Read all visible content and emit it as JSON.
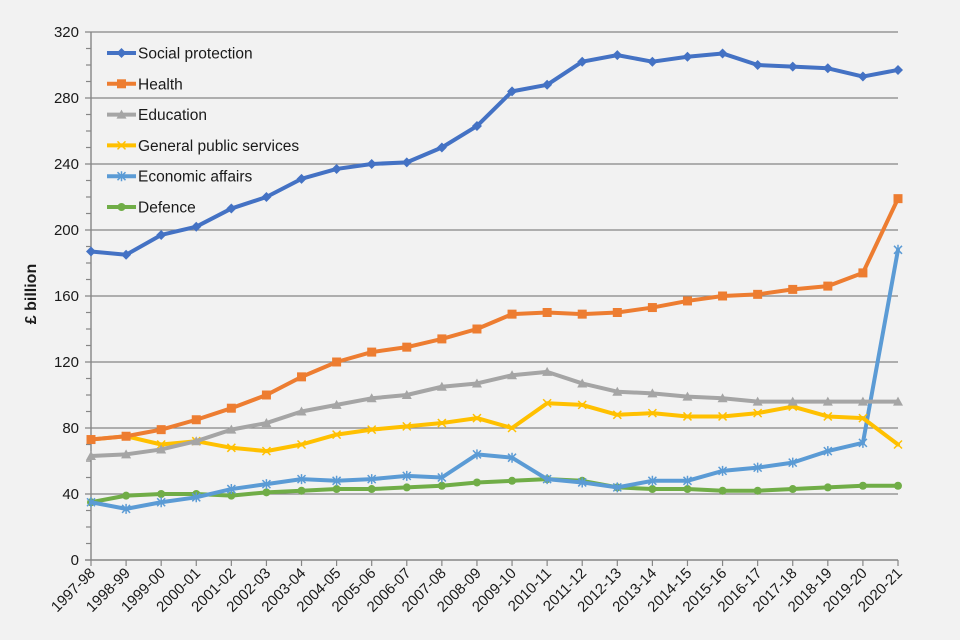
{
  "chart_data": {
    "type": "line",
    "title": "",
    "xlabel": "",
    "ylabel": "£ billion",
    "ylim": [
      0,
      320
    ],
    "yticks": [
      0,
      40,
      80,
      120,
      160,
      200,
      240,
      280,
      320
    ],
    "grid": true,
    "legend_position": "top-left",
    "categories": [
      "1997-98",
      "1998-99",
      "1999-00",
      "2000-01",
      "2001-02",
      "2002-03",
      "2003-04",
      "2004-05",
      "2005-06",
      "2006-07",
      "2007-08",
      "2008-09",
      "2009-10",
      "2010-11",
      "2011-12",
      "2012-13",
      "2013-14",
      "2014-15",
      "2015-16",
      "2016-17",
      "2017-18",
      "2018-19",
      "2019-20",
      "2020-21"
    ],
    "series": [
      {
        "name": "Social protection",
        "color": "#4472c4",
        "marker": "diamond",
        "values": [
          187,
          185,
          197,
          202,
          213,
          220,
          231,
          237,
          240,
          241,
          250,
          263,
          284,
          288,
          302,
          306,
          302,
          305,
          307,
          300,
          299,
          298,
          293,
          297
        ]
      },
      {
        "name": "Health",
        "color": "#ed7d31",
        "marker": "square",
        "values": [
          73,
          75,
          79,
          85,
          92,
          100,
          111,
          120,
          126,
          129,
          134,
          140,
          149,
          150,
          149,
          150,
          153,
          157,
          160,
          161,
          164,
          166,
          174,
          219
        ]
      },
      {
        "name": "Education",
        "color": "#a5a5a5",
        "marker": "triangle",
        "values": [
          63,
          64,
          67,
          72,
          79,
          83,
          90,
          94,
          98,
          100,
          105,
          107,
          112,
          114,
          107,
          102,
          101,
          99,
          98,
          96,
          96,
          96,
          96,
          96
        ]
      },
      {
        "name": "General public services",
        "color": "#ffc000",
        "marker": "x",
        "values": [
          73,
          75,
          70,
          72,
          68,
          66,
          70,
          76,
          79,
          81,
          83,
          86,
          80,
          95,
          94,
          88,
          89,
          87,
          87,
          89,
          93,
          87,
          86,
          70
        ]
      },
      {
        "name": "Economic affairs",
        "color": "#5b9bd5",
        "marker": "star",
        "values": [
          35,
          31,
          35,
          38,
          43,
          46,
          49,
          48,
          49,
          51,
          50,
          64,
          62,
          49,
          47,
          44,
          48,
          48,
          54,
          56,
          59,
          66,
          71,
          188
        ]
      },
      {
        "name": "Defence",
        "color": "#70ad47",
        "marker": "circle",
        "values": [
          35,
          39,
          40,
          40,
          39,
          41,
          42,
          43,
          43,
          44,
          45,
          47,
          48,
          49,
          48,
          44,
          43,
          43,
          42,
          42,
          43,
          44,
          45,
          45
        ]
      }
    ]
  }
}
